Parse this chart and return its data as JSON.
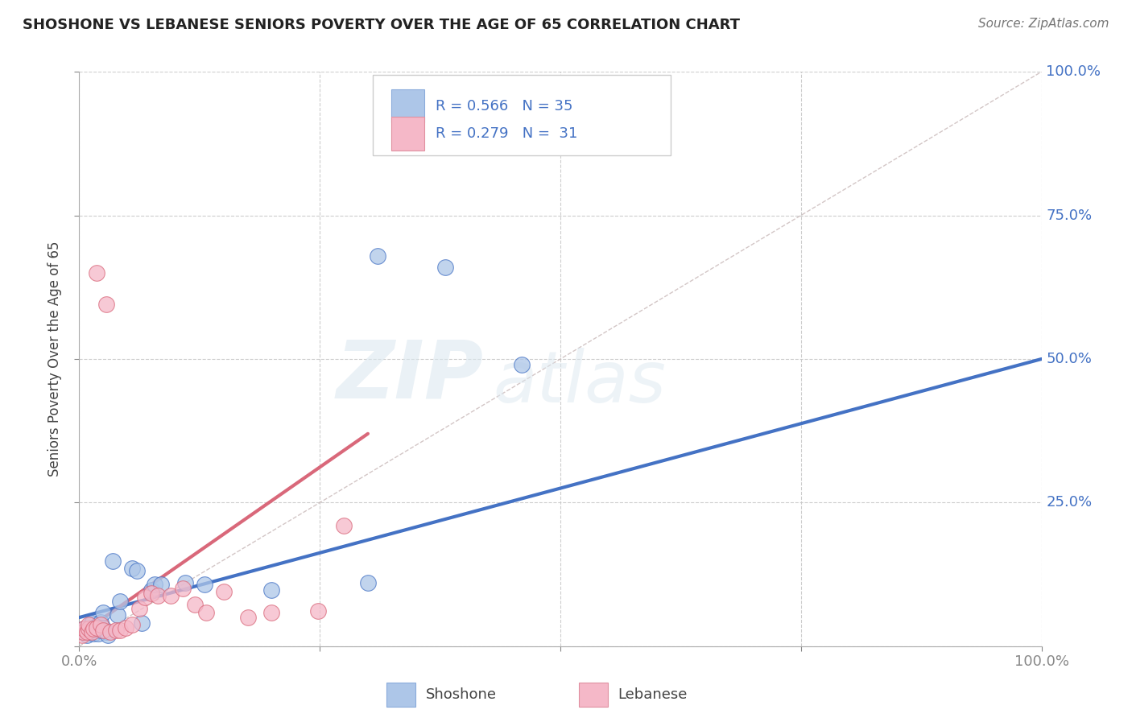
{
  "title": "SHOSHONE VS LEBANESE SENIORS POVERTY OVER THE AGE OF 65 CORRELATION CHART",
  "source": "Source: ZipAtlas.com",
  "ylabel": "Seniors Poverty Over the Age of 65",
  "xlim": [
    0,
    1.0
  ],
  "ylim": [
    0,
    1.0
  ],
  "watermark_line1": "ZIP",
  "watermark_line2": "atlas",
  "legend_label1": "Shoshone",
  "legend_label2": "Lebanese",
  "shoshone_color": "#adc6e8",
  "lebanese_color": "#f5b8c8",
  "shoshone_line_color": "#4472c4",
  "lebanese_line_color": "#d9687a",
  "diag_line_color": "#c8b8b8",
  "shoshone_x": [
    0.005,
    0.005,
    0.008,
    0.01,
    0.01,
    0.012,
    0.013,
    0.015,
    0.015,
    0.015,
    0.018,
    0.02,
    0.02,
    0.022,
    0.022,
    0.025,
    0.025,
    0.028,
    0.03,
    0.035,
    0.04,
    0.042,
    0.055,
    0.06,
    0.065,
    0.075,
    0.078,
    0.085,
    0.11,
    0.13,
    0.2,
    0.3,
    0.31,
    0.38,
    0.46
  ],
  "shoshone_y": [
    0.025,
    0.03,
    0.02,
    0.025,
    0.03,
    0.038,
    0.04,
    0.022,
    0.028,
    0.032,
    0.03,
    0.022,
    0.038,
    0.028,
    0.042,
    0.032,
    0.058,
    0.025,
    0.02,
    0.148,
    0.055,
    0.078,
    0.135,
    0.132,
    0.04,
    0.098,
    0.108,
    0.108,
    0.11,
    0.108,
    0.098,
    0.11,
    0.68,
    0.66,
    0.49
  ],
  "lebanese_x": [
    0.003,
    0.004,
    0.005,
    0.008,
    0.01,
    0.01,
    0.013,
    0.015,
    0.018,
    0.018,
    0.022,
    0.025,
    0.028,
    0.032,
    0.038,
    0.042,
    0.048,
    0.055,
    0.062,
    0.068,
    0.075,
    0.082,
    0.095,
    0.108,
    0.12,
    0.132,
    0.15,
    0.175,
    0.2,
    0.248,
    0.275
  ],
  "lebanese_y": [
    0.02,
    0.025,
    0.03,
    0.025,
    0.03,
    0.038,
    0.025,
    0.03,
    0.032,
    0.65,
    0.038,
    0.028,
    0.595,
    0.025,
    0.028,
    0.028,
    0.032,
    0.038,
    0.065,
    0.085,
    0.092,
    0.088,
    0.088,
    0.1,
    0.072,
    0.058,
    0.095,
    0.05,
    0.058,
    0.062,
    0.21
  ],
  "shoshone_trend_x": [
    0.0,
    1.0
  ],
  "shoshone_trend_y": [
    0.05,
    0.5
  ],
  "lebanese_trend_x": [
    0.0,
    0.3
  ],
  "lebanese_trend_y": [
    0.02,
    0.37
  ],
  "background_color": "#ffffff",
  "grid_color": "#c8c8c8"
}
